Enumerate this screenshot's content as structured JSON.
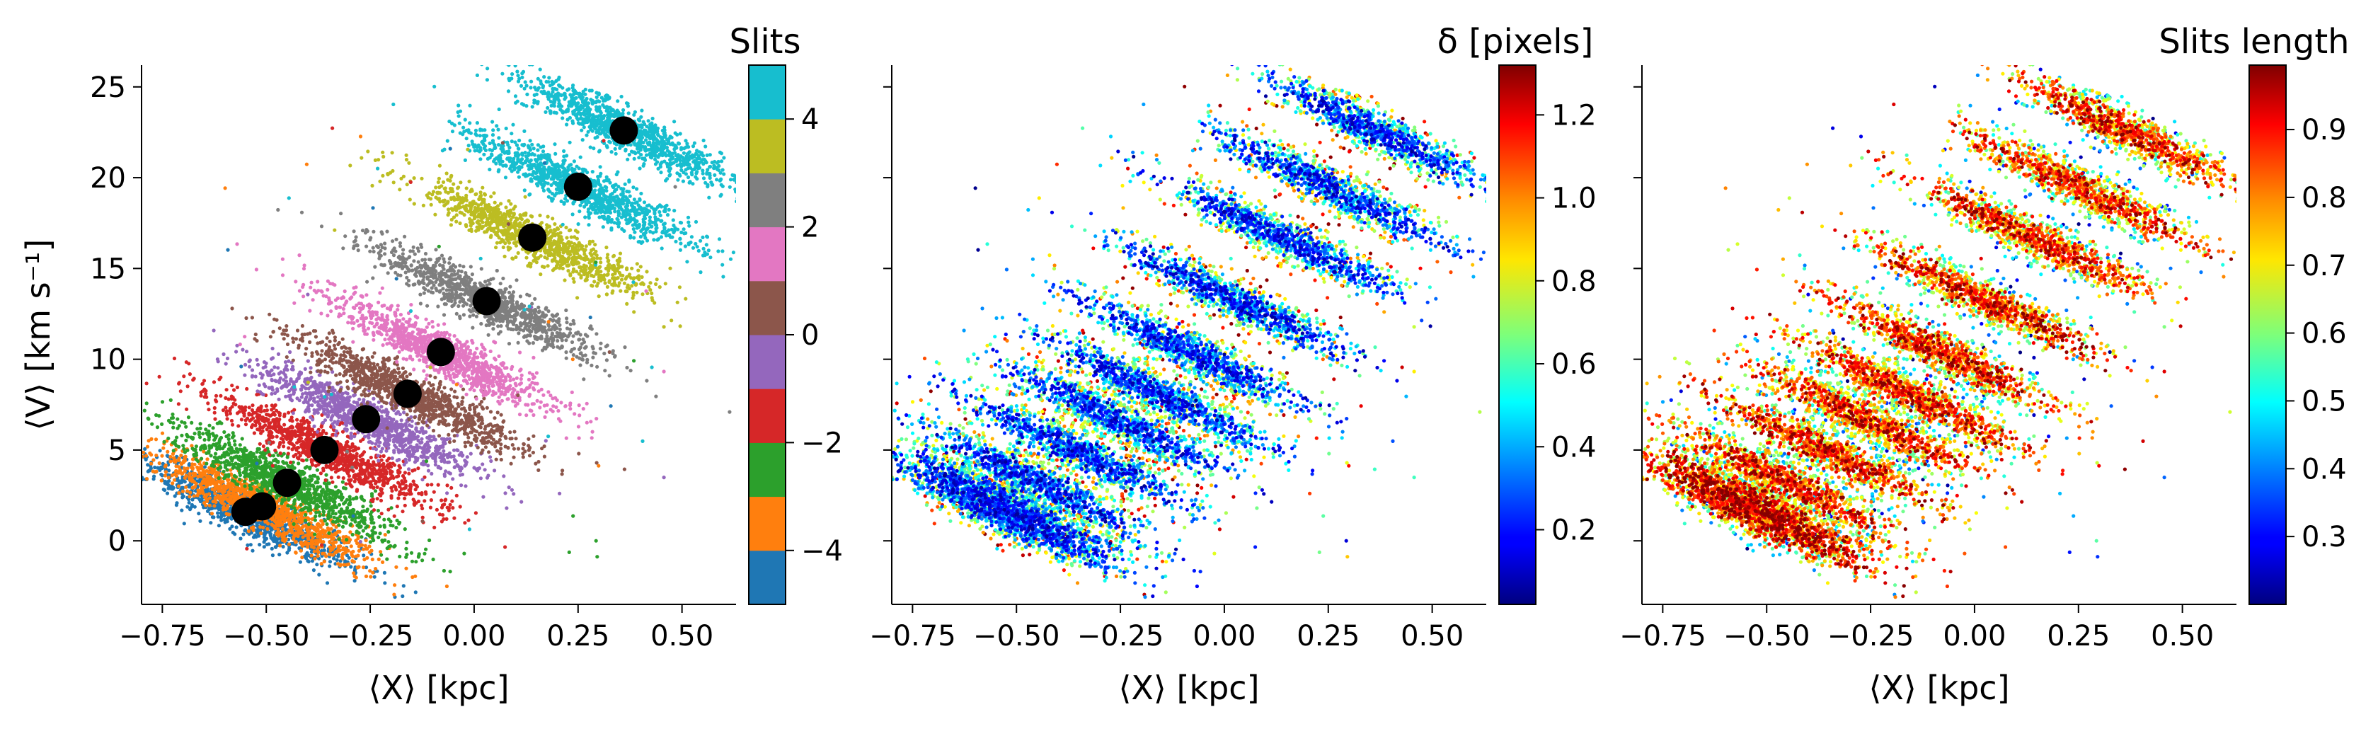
{
  "chart_data": [
    {
      "type": "scatter",
      "title": "",
      "xlabel": "⟨X⟩ [kpc]",
      "ylabel": "⟨V⟩ [km s⁻¹]",
      "xlim": [
        -0.8,
        0.63
      ],
      "ylim": [
        -3.5,
        26.2
      ],
      "xticks": [
        "−0.75",
        "−0.50",
        "−0.25",
        "0.00",
        "0.25",
        "0.50"
      ],
      "xtick_values": [
        -0.75,
        -0.5,
        -0.25,
        0.0,
        0.25,
        0.5
      ],
      "yticks": [
        "0",
        "5",
        "10",
        "15",
        "20",
        "25"
      ],
      "ytick_values": [
        0,
        5,
        10,
        15,
        20,
        25
      ],
      "color_by": "slit index",
      "colorbar": {
        "label": "Slits",
        "kind": "discrete",
        "range": [
          -5,
          5
        ],
        "ticks": [
          "−4",
          "−2",
          "0",
          "2",
          "4"
        ],
        "tick_values": [
          -4,
          -2,
          0,
          2,
          4
        ],
        "colors": [
          "#1f77b4",
          "#ff7f0e",
          "#2ca02c",
          "#d62728",
          "#9467bd",
          "#8c564b",
          "#e377c2",
          "#7f7f7f",
          "#bcbd22",
          "#17becf"
        ]
      },
      "slit_centers": [
        {
          "slit": -5,
          "x": -0.55,
          "y": 1.6
        },
        {
          "slit": -4,
          "x": -0.51,
          "y": 1.9
        },
        {
          "slit": -3,
          "x": -0.45,
          "y": 3.2
        },
        {
          "slit": -2,
          "x": -0.36,
          "y": 5.0
        },
        {
          "slit": -1,
          "x": -0.26,
          "y": 6.7
        },
        {
          "slit": 0,
          "x": -0.16,
          "y": 8.1
        },
        {
          "slit": 1,
          "x": -0.08,
          "y": 10.4
        },
        {
          "slit": 2,
          "x": 0.03,
          "y": 13.2
        },
        {
          "slit": 3,
          "x": 0.14,
          "y": 16.7
        },
        {
          "slit": 4,
          "x": 0.25,
          "y": 19.5
        },
        {
          "slit": 5,
          "x": 0.36,
          "y": 22.6
        }
      ],
      "marker": {
        "centers_color": "#000000"
      }
    },
    {
      "type": "scatter",
      "title": "",
      "xlabel": "⟨X⟩ [kpc]",
      "ylabel": "",
      "xlim": [
        -0.8,
        0.63
      ],
      "ylim": [
        -3.5,
        26.2
      ],
      "xticks": [
        "−0.75",
        "−0.50",
        "−0.25",
        "0.00",
        "0.25",
        "0.50"
      ],
      "xtick_values": [
        -0.75,
        -0.5,
        -0.25,
        0.0,
        0.25,
        0.5
      ],
      "color_by": "δ",
      "colorbar": {
        "label": "δ [pixels]",
        "kind": "continuous",
        "colormap": "jet",
        "range": [
          0.02,
          1.32
        ],
        "ticks": [
          "0.2",
          "0.4",
          "0.6",
          "0.8",
          "1.0",
          "1.2"
        ],
        "tick_values": [
          0.2,
          0.4,
          0.6,
          0.8,
          1.0,
          1.2
        ]
      }
    },
    {
      "type": "scatter",
      "title": "",
      "xlabel": "⟨X⟩ [kpc]",
      "ylabel": "",
      "xlim": [
        -0.8,
        0.63
      ],
      "ylim": [
        -3.5,
        26.2
      ],
      "xticks": [
        "−0.75",
        "−0.50",
        "−0.25",
        "0.00",
        "0.25",
        "0.50"
      ],
      "xtick_values": [
        -0.75,
        -0.5,
        -0.25,
        0.0,
        0.25,
        0.5
      ],
      "color_by": "slit length",
      "colorbar": {
        "label": "Slits length",
        "kind": "continuous",
        "colormap": "jet",
        "range": [
          0.2,
          0.995
        ],
        "ticks": [
          "0.3",
          "0.4",
          "0.5",
          "0.6",
          "0.7",
          "0.8",
          "0.9"
        ],
        "tick_values": [
          0.3,
          0.4,
          0.5,
          0.6,
          0.7,
          0.8,
          0.9
        ]
      }
    }
  ]
}
